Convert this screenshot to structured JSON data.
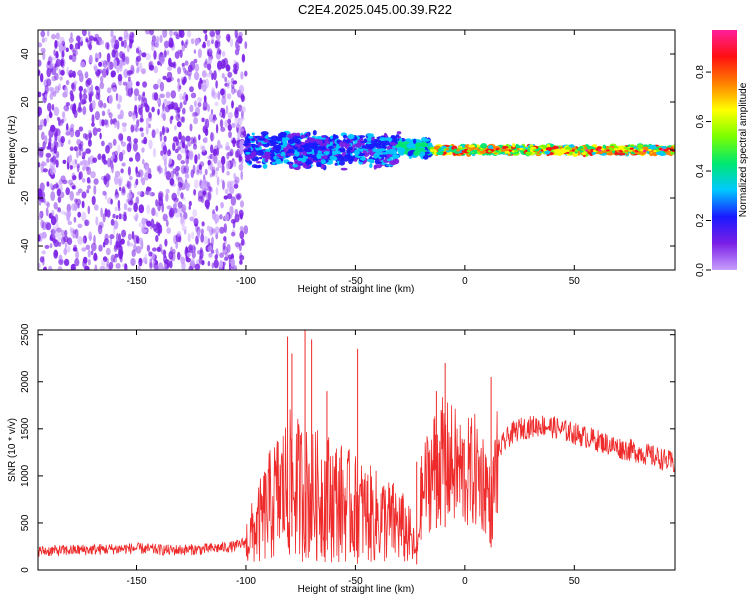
{
  "title": "C2E4.2025.045.00.39.R22",
  "colors": {
    "snr_line": "#ee2a2a",
    "colorbar": [
      "#c8a0ff",
      "#7a1fe6",
      "#1a1aff",
      "#00c8ff",
      "#00e870",
      "#7aff00",
      "#ffff00",
      "#ff8000",
      "#ff1010",
      "#ff1e9a"
    ]
  },
  "chart_data": [
    {
      "type": "heatmap",
      "xlabel": "Height of straight line (km)",
      "ylabel": "Frequency (Hz)",
      "xlim": [
        -195,
        96
      ],
      "ylim": [
        -50,
        50
      ],
      "xticks": [
        -150,
        -100,
        -50,
        0,
        50
      ],
      "yticks": [
        -40,
        -20,
        0,
        20,
        40
      ],
      "colorbar": {
        "label": "Normalized spectral amplitude",
        "range": [
          0,
          0.97
        ],
        "ticks": [
          0.0,
          0.2,
          0.4,
          0.6,
          0.8
        ]
      },
      "regions": [
        {
          "x": [
            -195,
            -100
          ],
          "freq_spread": [
            -50,
            50
          ],
          "amplitude": [
            0.02,
            0.15
          ]
        },
        {
          "x": [
            -100,
            -30
          ],
          "freq_spread": [
            -8,
            8
          ],
          "amplitude": [
            0.1,
            0.35
          ]
        },
        {
          "x": [
            -30,
            -15
          ],
          "freq_spread": [
            -3,
            5
          ],
          "amplitude": [
            0.2,
            0.45
          ]
        },
        {
          "x": [
            -15,
            96
          ],
          "freq_spread": [
            -2,
            2
          ],
          "amplitude": [
            0.3,
            0.9
          ]
        }
      ]
    },
    {
      "type": "line",
      "xlabel": "Height of straight line (km)",
      "ylabel": "SNR (10 * v/v)",
      "xlim": [
        -195,
        96
      ],
      "ylim": [
        0,
        2550
      ],
      "xticks": [
        -150,
        -100,
        -50,
        0,
        50
      ],
      "yticks": [
        0,
        500,
        1000,
        1500,
        2000,
        2500
      ],
      "series": [
        {
          "x": [
            -195,
            -180,
            -165,
            -150,
            -135,
            -120,
            -105,
            -100,
            -95,
            -90,
            -85,
            -80,
            -75,
            -70,
            -65,
            -60,
            -55,
            -50,
            -45,
            -40,
            -35,
            -30,
            -25,
            -22,
            -20,
            -18,
            -15,
            -12,
            -10,
            -5,
            0,
            5,
            10,
            12,
            15,
            20,
            25,
            30,
            35,
            40,
            50,
            60,
            70,
            80,
            90,
            96
          ],
          "y": [
            200,
            210,
            220,
            230,
            210,
            220,
            250,
            300,
            450,
            650,
            800,
            900,
            850,
            780,
            800,
            760,
            700,
            650,
            600,
            560,
            520,
            480,
            350,
            150,
            750,
            900,
            1050,
            1150,
            1150,
            1100,
            1000,
            1050,
            900,
            600,
            1250,
            1420,
            1500,
            1520,
            1540,
            1520,
            1450,
            1380,
            1300,
            1250,
            1180,
            1130
          ],
          "spikes": [
            {
              "x": -81,
              "y": 2480
            },
            {
              "x": -79,
              "y": 2300
            },
            {
              "x": -73,
              "y": 2550
            },
            {
              "x": -70,
              "y": 2450
            },
            {
              "x": -63,
              "y": 1900
            },
            {
              "x": -49,
              "y": 2350
            },
            {
              "x": -22,
              "y": 1150
            },
            {
              "x": -13,
              "y": 1900
            },
            {
              "x": -9,
              "y": 2200
            },
            {
              "x": 12,
              "y": 2050
            }
          ]
        }
      ]
    }
  ]
}
